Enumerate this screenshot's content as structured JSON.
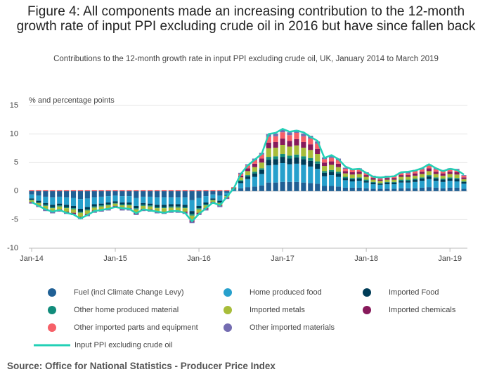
{
  "chart_data": {
    "type": "bar",
    "title": "Figure 4: All components made an increasing contribution to the 12-month growth rate of input PPI excluding crude oil in 2016 but have since fallen back",
    "subtitle": "Contributions to the 12-month growth rate in input PPI excluding crude oil, UK, January 2014 to March 2019",
    "y_label": "% and percentage points",
    "source": "Source: Office for National Statistics - Producer Price Index",
    "stacked": true,
    "grid": true,
    "ylim": [
      -10,
      15
    ],
    "yticks": [
      15,
      10,
      5,
      0,
      -5,
      -10
    ],
    "categories": [
      "Jan-14",
      null,
      null,
      null,
      null,
      null,
      null,
      null,
      null,
      null,
      null,
      null,
      "Jan-15",
      null,
      null,
      null,
      null,
      null,
      null,
      null,
      null,
      null,
      null,
      null,
      "Jan-16",
      null,
      null,
      null,
      null,
      null,
      null,
      null,
      null,
      null,
      null,
      null,
      "Jan-17",
      null,
      null,
      null,
      null,
      null,
      null,
      null,
      null,
      null,
      null,
      null,
      "Jan-18",
      null,
      null,
      null,
      null,
      null,
      null,
      null,
      null,
      null,
      null,
      null,
      "Jan-19",
      null,
      null
    ],
    "series": [
      {
        "name": "Fuel (incl Climate Change Levy)",
        "color": "#206095",
        "values": [
          -0.6,
          -0.8,
          -1.0,
          -1.1,
          -1.0,
          -1.1,
          -1.2,
          -1.4,
          -1.3,
          -1.1,
          -1.0,
          -0.9,
          -0.8,
          -0.9,
          -0.9,
          -1.2,
          -1.0,
          -1.0,
          -1.1,
          -1.1,
          -1.1,
          -1.1,
          -1.1,
          -1.6,
          -1.2,
          -0.9,
          -0.6,
          -0.8,
          -0.3,
          0.1,
          0.5,
          0.7,
          0.8,
          1.0,
          1.5,
          1.5,
          1.6,
          1.6,
          1.6,
          1.5,
          1.4,
          1.3,
          0.9,
          0.9,
          0.8,
          0.6,
          0.6,
          0.6,
          0.5,
          0.4,
          0.4,
          0.4,
          0.4,
          0.5,
          0.5,
          0.5,
          0.6,
          0.7,
          0.6,
          0.5,
          0.6,
          0.6,
          0.4
        ]
      },
      {
        "name": "Home produced food",
        "color": "#27a0cc",
        "values": [
          -0.7,
          -0.9,
          -1.1,
          -1.3,
          -1.2,
          -1.3,
          -1.4,
          -1.7,
          -1.5,
          -1.2,
          -1.2,
          -1.1,
          -1.0,
          -1.1,
          -1.1,
          -1.4,
          -1.1,
          -1.2,
          -1.3,
          -1.3,
          -1.2,
          -1.2,
          -1.3,
          -1.9,
          -1.4,
          -1.1,
          -0.7,
          -0.9,
          -0.4,
          0.2,
          0.9,
          1.4,
          1.7,
          2.0,
          3.0,
          3.1,
          3.3,
          3.1,
          3.2,
          3.1,
          2.9,
          2.6,
          1.7,
          1.9,
          1.7,
          1.3,
          1.1,
          1.2,
          1.0,
          0.8,
          0.7,
          0.8,
          0.8,
          1.0,
          1.0,
          1.1,
          1.2,
          1.4,
          1.2,
          1.1,
          1.2,
          1.1,
          0.9
        ]
      },
      {
        "name": "Imported Food",
        "color": "#003c57",
        "values": [
          -0.2,
          -0.3,
          -0.3,
          -0.4,
          -0.3,
          -0.4,
          -0.4,
          -0.5,
          -0.4,
          -0.4,
          -0.3,
          -0.3,
          -0.3,
          -0.3,
          -0.3,
          -0.4,
          -0.3,
          -0.3,
          -0.4,
          -0.4,
          -0.4,
          -0.4,
          -0.4,
          -0.5,
          -0.4,
          -0.3,
          -0.2,
          -0.3,
          -0.1,
          0.1,
          0.3,
          0.5,
          0.6,
          0.7,
          1.0,
          1.0,
          1.1,
          1.0,
          1.1,
          1.0,
          1.0,
          0.9,
          0.6,
          0.6,
          0.6,
          0.4,
          0.4,
          0.4,
          0.3,
          0.3,
          0.2,
          0.3,
          0.3,
          0.3,
          0.3,
          0.4,
          0.4,
          0.5,
          0.4,
          0.4,
          0.4,
          0.4,
          0.3
        ]
      },
      {
        "name": "Other home produced material",
        "color": "#118c7b",
        "values": [
          -0.1,
          -0.1,
          -0.2,
          -0.2,
          -0.2,
          -0.2,
          -0.2,
          -0.2,
          -0.2,
          -0.2,
          -0.2,
          -0.2,
          -0.1,
          -0.2,
          -0.2,
          -0.2,
          -0.2,
          -0.2,
          -0.2,
          -0.2,
          -0.2,
          -0.2,
          -0.2,
          -0.3,
          -0.2,
          -0.2,
          -0.1,
          -0.1,
          -0.1,
          0.0,
          0.2,
          0.2,
          0.3,
          0.3,
          0.5,
          0.5,
          0.5,
          0.5,
          0.5,
          0.5,
          0.5,
          0.4,
          0.3,
          0.3,
          0.3,
          0.2,
          0.2,
          0.2,
          0.2,
          0.1,
          0.1,
          0.1,
          0.1,
          0.2,
          0.2,
          0.2,
          0.2,
          0.2,
          0.2,
          0.2,
          0.2,
          0.2,
          0.1
        ]
      },
      {
        "name": "Imported metals",
        "color": "#a8bd3a",
        "values": [
          -0.3,
          -0.4,
          -0.5,
          -0.5,
          -0.5,
          -0.6,
          -0.6,
          -0.7,
          -0.6,
          -0.5,
          -0.5,
          -0.5,
          -0.4,
          -0.5,
          -0.5,
          -0.6,
          -0.5,
          -0.5,
          -0.5,
          -0.6,
          -0.5,
          -0.5,
          -0.6,
          -0.8,
          -0.6,
          -0.5,
          -0.3,
          -0.4,
          -0.2,
          0.1,
          0.5,
          0.7,
          0.8,
          1.0,
          1.5,
          1.5,
          1.6,
          1.6,
          1.6,
          1.5,
          1.4,
          1.3,
          0.9,
          0.9,
          0.8,
          0.6,
          0.6,
          0.6,
          0.5,
          0.4,
          0.4,
          0.4,
          0.4,
          0.5,
          0.5,
          0.5,
          0.6,
          0.7,
          0.6,
          0.5,
          0.6,
          0.6,
          0.4
        ]
      },
      {
        "name": "Imported chemicals",
        "color": "#871a5b",
        "values": [
          -0.1,
          -0.1,
          -0.2,
          -0.2,
          -0.2,
          -0.2,
          -0.2,
          -0.2,
          -0.2,
          -0.2,
          -0.2,
          -0.2,
          -0.1,
          -0.2,
          -0.2,
          -0.2,
          -0.2,
          -0.2,
          -0.2,
          -0.2,
          -0.2,
          -0.2,
          -0.2,
          -0.3,
          -0.2,
          -0.2,
          -0.1,
          -0.1,
          -0.1,
          0.1,
          0.3,
          0.5,
          0.6,
          0.7,
          1.0,
          1.0,
          1.1,
          1.0,
          1.1,
          1.0,
          1.0,
          0.9,
          0.6,
          0.6,
          0.6,
          0.4,
          0.4,
          0.4,
          0.3,
          0.3,
          0.2,
          0.3,
          0.3,
          0.3,
          0.3,
          0.4,
          0.4,
          0.5,
          0.4,
          0.4,
          0.4,
          0.4,
          0.3
        ]
      },
      {
        "name": "Other imported parts and equipment",
        "color": "#f66068",
        "values": [
          0.2,
          0.2,
          0.2,
          0.2,
          0.2,
          0.2,
          0.2,
          0.2,
          0.2,
          0.2,
          0.2,
          0.2,
          0.2,
          0.2,
          0.2,
          0.2,
          0.2,
          0.2,
          0.2,
          0.2,
          0.2,
          0.2,
          0.2,
          0.2,
          0.2,
          0.2,
          0.2,
          0.2,
          0.2,
          0.1,
          0.3,
          0.5,
          0.6,
          0.7,
          1.0,
          1.0,
          1.1,
          1.0,
          1.1,
          1.0,
          1.0,
          0.9,
          0.6,
          0.6,
          0.6,
          0.4,
          0.4,
          0.4,
          0.3,
          0.3,
          0.2,
          0.3,
          0.3,
          0.3,
          0.3,
          0.4,
          0.4,
          0.5,
          0.4,
          0.4,
          0.4,
          0.4,
          0.3
        ]
      },
      {
        "name": "Other imported materials",
        "color": "#746cb1",
        "values": [
          -0.2,
          -0.2,
          -0.2,
          -0.2,
          -0.2,
          -0.2,
          -0.2,
          -0.2,
          -0.2,
          -0.2,
          -0.2,
          -0.2,
          -0.2,
          -0.2,
          -0.2,
          -0.2,
          -0.2,
          -0.2,
          -0.2,
          -0.2,
          -0.2,
          -0.2,
          -0.2,
          -0.2,
          -0.2,
          -0.2,
          -0.2,
          -0.2,
          -0.2,
          0.0,
          0.2,
          0.2,
          0.3,
          0.3,
          0.5,
          0.5,
          0.5,
          0.5,
          0.5,
          0.5,
          0.5,
          0.4,
          0.3,
          0.3,
          0.3,
          0.2,
          0.2,
          0.2,
          0.2,
          0.1,
          0.1,
          0.1,
          0.1,
          0.2,
          0.2,
          0.2,
          0.2,
          0.2,
          0.2,
          0.2,
          0.2,
          0.2,
          0.1
        ]
      },
      {
        "name": "Input PPI excluding crude oil",
        "color": "#22d0b6",
        "type": "line",
        "values": [
          -1.9,
          -2.6,
          -3.2,
          -3.6,
          -3.3,
          -3.8,
          -4.1,
          -4.8,
          -4.2,
          -3.5,
          -3.3,
          -3.1,
          -2.8,
          -3.0,
          -3.1,
          -3.9,
          -3.2,
          -3.4,
          -3.6,
          -3.8,
          -3.5,
          -3.5,
          -3.8,
          -5.3,
          -4.0,
          -3.0,
          -2.0,
          -2.5,
          -1.0,
          0.5,
          3.0,
          4.5,
          5.5,
          6.5,
          10.0,
          10.2,
          10.9,
          10.4,
          10.6,
          10.3,
          9.5,
          8.8,
          5.8,
          6.3,
          5.6,
          4.3,
          3.8,
          3.9,
          3.2,
          2.5,
          2.4,
          2.5,
          2.6,
          3.3,
          3.4,
          3.6,
          4.0,
          4.7,
          4.0,
          3.5,
          3.9,
          3.7,
          2.9
        ]
      }
    ]
  }
}
